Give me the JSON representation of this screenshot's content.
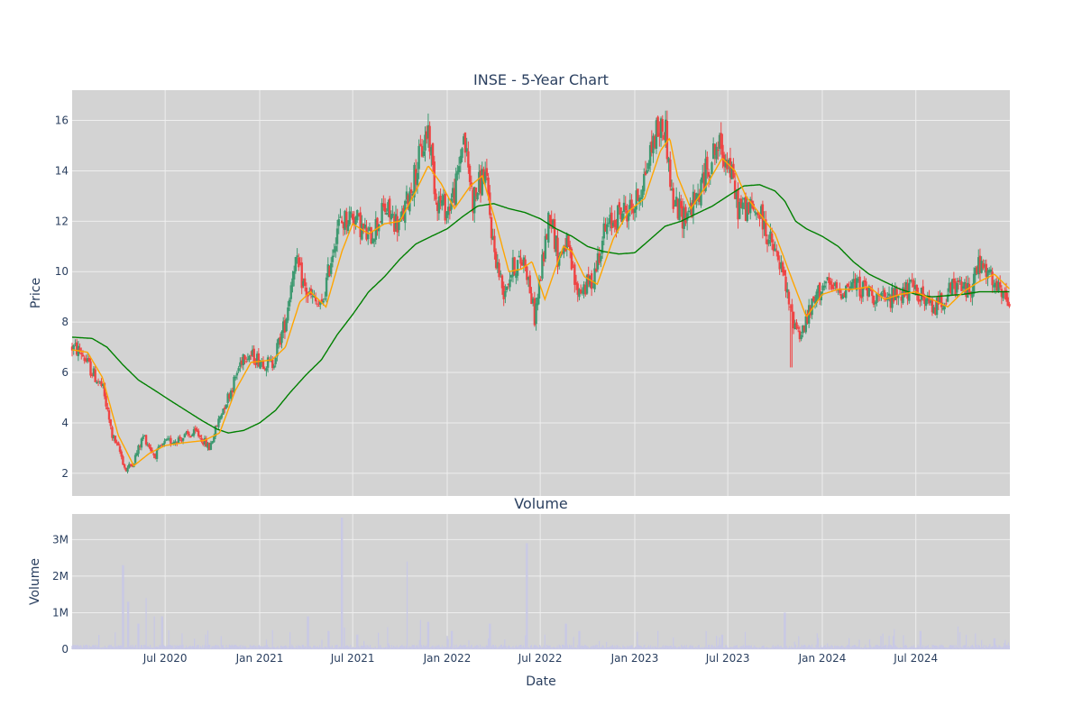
{
  "colors": {
    "background": "#ffffff",
    "plot_bg": "#d3d3d3",
    "grid": "#eeeeee",
    "up": "#3d9970",
    "down": "#ef4444",
    "ma_short": "#ffa500",
    "ma_long": "#008000",
    "volume": "#c8c8e6",
    "text": "#2a3f5f"
  },
  "chart_data": [
    {
      "type": "candlestick",
      "title": "INSE - 5-Year Chart",
      "xlabel": "",
      "ylabel": "Price",
      "xlim": [
        "2020-01-02",
        "2024-12-31"
      ],
      "ylim": [
        1.1,
        17.2
      ],
      "yticks": [
        2,
        4,
        6,
        8,
        10,
        12,
        14,
        16
      ],
      "xticks": [],
      "grid": true,
      "legend": "none",
      "price_anchors": [
        [
          "2020-01-02",
          7.0
        ],
        [
          "2020-01-20",
          6.8
        ],
        [
          "2020-02-10",
          6.0
        ],
        [
          "2020-03-01",
          5.4
        ],
        [
          "2020-03-20",
          3.5
        ],
        [
          "2020-04-05",
          2.8
        ],
        [
          "2020-04-15",
          2.1
        ],
        [
          "2020-05-01",
          2.5
        ],
        [
          "2020-05-20",
          3.5
        ],
        [
          "2020-06-10",
          2.7
        ],
        [
          "2020-07-01",
          3.2
        ],
        [
          "2020-08-01",
          3.4
        ],
        [
          "2020-09-01",
          3.6
        ],
        [
          "2020-09-25",
          3.0
        ],
        [
          "2020-10-20",
          4.5
        ],
        [
          "2020-11-10",
          5.5
        ],
        [
          "2020-12-01",
          6.8
        ],
        [
          "2021-01-01",
          6.5
        ],
        [
          "2021-01-25",
          6.3
        ],
        [
          "2021-02-20",
          8.0
        ],
        [
          "2021-03-10",
          10.5
        ],
        [
          "2021-04-01",
          9.2
        ],
        [
          "2021-05-01",
          8.5
        ],
        [
          "2021-06-01",
          11.8
        ],
        [
          "2021-07-01",
          12.3
        ],
        [
          "2021-08-01",
          11.3
        ],
        [
          "2021-09-01",
          12.5
        ],
        [
          "2021-10-01",
          11.8
        ],
        [
          "2021-11-01",
          14.0
        ],
        [
          "2021-11-25",
          15.7
        ],
        [
          "2021-12-10",
          13.0
        ],
        [
          "2022-01-01",
          12.4
        ],
        [
          "2022-01-20",
          13.5
        ],
        [
          "2022-02-01",
          15.5
        ],
        [
          "2022-02-20",
          12.8
        ],
        [
          "2022-03-15",
          14.0
        ],
        [
          "2022-04-01",
          11.0
        ],
        [
          "2022-04-20",
          9.2
        ],
        [
          "2022-05-10",
          10.2
        ],
        [
          "2022-06-01",
          10.5
        ],
        [
          "2022-06-20",
          8.2
        ],
        [
          "2022-07-10",
          11.0
        ],
        [
          "2022-07-20",
          12.5
        ],
        [
          "2022-08-05",
          10.5
        ],
        [
          "2022-08-20",
          11.2
        ],
        [
          "2022-09-10",
          9.2
        ],
        [
          "2022-10-10",
          9.6
        ],
        [
          "2022-11-01",
          11.5
        ],
        [
          "2022-12-01",
          12.3
        ],
        [
          "2023-01-01",
          12.6
        ],
        [
          "2023-01-20",
          13.8
        ],
        [
          "2023-02-10",
          15.5
        ],
        [
          "2023-03-01",
          15.8
        ],
        [
          "2023-03-15",
          12.8
        ],
        [
          "2023-04-05",
          12.2
        ],
        [
          "2023-05-01",
          12.8
        ],
        [
          "2023-05-20",
          14.0
        ],
        [
          "2023-06-10",
          15.0
        ],
        [
          "2023-07-01",
          14.5
        ],
        [
          "2023-07-20",
          12.6
        ],
        [
          "2023-08-10",
          12.5
        ],
        [
          "2023-09-01",
          12.3
        ],
        [
          "2023-09-25",
          11.0
        ],
        [
          "2023-10-15",
          10.0
        ],
        [
          "2023-11-01",
          8.3
        ],
        [
          "2023-11-20",
          7.5
        ],
        [
          "2023-12-10",
          8.5
        ],
        [
          "2024-01-01",
          9.5
        ],
        [
          "2024-02-01",
          9.2
        ],
        [
          "2024-03-01",
          9.5
        ],
        [
          "2024-04-01",
          9.2
        ],
        [
          "2024-05-01",
          8.8
        ],
        [
          "2024-06-01",
          9.2
        ],
        [
          "2024-07-01",
          9.3
        ],
        [
          "2024-08-01",
          8.5
        ],
        [
          "2024-08-20",
          8.9
        ],
        [
          "2024-09-15",
          9.4
        ],
        [
          "2024-10-15",
          9.3
        ],
        [
          "2024-11-01",
          10.3
        ],
        [
          "2024-11-20",
          9.8
        ],
        [
          "2024-12-15",
          9.0
        ],
        [
          "2024-12-31",
          8.8
        ]
      ],
      "gaps": [
        [
          "2023-11-02",
          6.2
        ]
      ],
      "ma_short": [
        [
          "2020-01-02",
          6.9
        ],
        [
          "2020-02-01",
          6.8
        ],
        [
          "2020-03-01",
          5.8
        ],
        [
          "2020-04-01",
          3.5
        ],
        [
          "2020-05-01",
          2.3
        ],
        [
          "2020-06-01",
          2.8
        ],
        [
          "2020-07-01",
          3.1
        ],
        [
          "2020-08-01",
          3.2
        ],
        [
          "2020-09-15",
          3.3
        ],
        [
          "2020-10-15",
          3.6
        ],
        [
          "2020-11-15",
          5.3
        ],
        [
          "2020-12-15",
          6.4
        ],
        [
          "2021-01-25",
          6.5
        ],
        [
          "2021-02-20",
          7.0
        ],
        [
          "2021-03-20",
          8.8
        ],
        [
          "2021-04-10",
          9.2
        ],
        [
          "2021-05-10",
          8.6
        ],
        [
          "2021-06-10",
          10.8
        ],
        [
          "2021-07-01",
          11.9
        ],
        [
          "2021-08-01",
          11.5
        ],
        [
          "2021-09-01",
          11.9
        ],
        [
          "2021-10-01",
          12.0
        ],
        [
          "2021-11-01",
          13.2
        ],
        [
          "2021-11-25",
          14.2
        ],
        [
          "2021-12-20",
          13.5
        ],
        [
          "2022-01-15",
          12.5
        ],
        [
          "2022-02-15",
          13.4
        ],
        [
          "2022-03-10",
          13.8
        ],
        [
          "2022-04-05",
          12.0
        ],
        [
          "2022-05-01",
          10.0
        ],
        [
          "2022-05-25",
          10.1
        ],
        [
          "2022-06-15",
          10.4
        ],
        [
          "2022-07-10",
          8.9
        ],
        [
          "2022-07-25",
          9.8
        ],
        [
          "2022-08-15",
          11.0
        ],
        [
          "2022-09-01",
          10.8
        ],
        [
          "2022-09-25",
          9.8
        ],
        [
          "2022-10-20",
          9.5
        ],
        [
          "2022-11-20",
          11.3
        ],
        [
          "2022-12-20",
          12.4
        ],
        [
          "2023-01-20",
          12.9
        ],
        [
          "2023-02-20",
          14.8
        ],
        [
          "2023-03-10",
          15.3
        ],
        [
          "2023-03-25",
          13.8
        ],
        [
          "2023-04-20",
          12.5
        ],
        [
          "2023-05-20",
          13.4
        ],
        [
          "2023-06-20",
          14.5
        ],
        [
          "2023-07-15",
          14.0
        ],
        [
          "2023-08-05",
          13.0
        ],
        [
          "2023-09-01",
          12.3
        ],
        [
          "2023-10-01",
          11.5
        ],
        [
          "2023-11-01",
          9.8
        ],
        [
          "2023-12-01",
          8.2
        ],
        [
          "2024-01-01",
          9.1
        ],
        [
          "2024-02-01",
          9.3
        ],
        [
          "2024-03-01",
          9.3
        ],
        [
          "2024-04-01",
          9.4
        ],
        [
          "2024-05-01",
          8.9
        ],
        [
          "2024-06-01",
          9.1
        ],
        [
          "2024-07-01",
          9.2
        ],
        [
          "2024-08-01",
          8.9
        ],
        [
          "2024-09-01",
          8.6
        ],
        [
          "2024-10-01",
          9.2
        ],
        [
          "2024-11-01",
          9.6
        ],
        [
          "2024-12-01",
          9.9
        ],
        [
          "2024-12-31",
          9.3
        ]
      ],
      "ma_long": [
        [
          "2020-01-02",
          7.4
        ],
        [
          "2020-02-10",
          7.35
        ],
        [
          "2020-03-10",
          7.0
        ],
        [
          "2020-04-10",
          6.3
        ],
        [
          "2020-05-10",
          5.7
        ],
        [
          "2020-06-10",
          5.3
        ],
        [
          "2020-07-10",
          4.9
        ],
        [
          "2020-08-10",
          4.5
        ],
        [
          "2020-09-10",
          4.1
        ],
        [
          "2020-10-10",
          3.75
        ],
        [
          "2020-11-01",
          3.6
        ],
        [
          "2020-12-01",
          3.7
        ],
        [
          "2021-01-01",
          4.0
        ],
        [
          "2021-02-01",
          4.5
        ],
        [
          "2021-03-01",
          5.2
        ],
        [
          "2021-04-01",
          5.9
        ],
        [
          "2021-05-01",
          6.5
        ],
        [
          "2021-06-01",
          7.5
        ],
        [
          "2021-07-01",
          8.3
        ],
        [
          "2021-08-01",
          9.2
        ],
        [
          "2021-09-01",
          9.8
        ],
        [
          "2021-10-01",
          10.5
        ],
        [
          "2021-11-01",
          11.1
        ],
        [
          "2021-12-01",
          11.4
        ],
        [
          "2022-01-01",
          11.7
        ],
        [
          "2022-02-01",
          12.2
        ],
        [
          "2022-03-01",
          12.6
        ],
        [
          "2022-04-01",
          12.7
        ],
        [
          "2022-05-01",
          12.5
        ],
        [
          "2022-06-01",
          12.35
        ],
        [
          "2022-07-01",
          12.1
        ],
        [
          "2022-08-01",
          11.7
        ],
        [
          "2022-09-01",
          11.4
        ],
        [
          "2022-10-01",
          11.0
        ],
        [
          "2022-11-01",
          10.8
        ],
        [
          "2022-12-01",
          10.7
        ],
        [
          "2023-01-01",
          10.75
        ],
        [
          "2023-02-01",
          11.3
        ],
        [
          "2023-03-01",
          11.8
        ],
        [
          "2023-04-01",
          12.0
        ],
        [
          "2023-05-01",
          12.3
        ],
        [
          "2023-06-01",
          12.6
        ],
        [
          "2023-07-01",
          13.0
        ],
        [
          "2023-08-01",
          13.4
        ],
        [
          "2023-09-01",
          13.45
        ],
        [
          "2023-10-01",
          13.2
        ],
        [
          "2023-10-20",
          12.8
        ],
        [
          "2023-11-10",
          12.0
        ],
        [
          "2023-12-01",
          11.7
        ],
        [
          "2024-01-01",
          11.4
        ],
        [
          "2024-02-01",
          11.0
        ],
        [
          "2024-03-01",
          10.4
        ],
        [
          "2024-04-01",
          9.9
        ],
        [
          "2024-05-01",
          9.6
        ],
        [
          "2024-06-01",
          9.3
        ],
        [
          "2024-07-01",
          9.1
        ],
        [
          "2024-08-01",
          9.0
        ],
        [
          "2024-09-01",
          9.05
        ],
        [
          "2024-10-01",
          9.1
        ],
        [
          "2024-11-01",
          9.2
        ],
        [
          "2024-12-31",
          9.2
        ]
      ]
    },
    {
      "type": "bar",
      "title": "Volume",
      "xlabel": "Date",
      "ylabel": "Volume",
      "xlim": [
        "2020-01-02",
        "2024-12-31"
      ],
      "ylim": [
        0,
        3700000
      ],
      "yticks": [
        0,
        1000000,
        2000000,
        3000000
      ],
      "ytick_labels": [
        "0",
        "1M",
        "2M",
        "3M"
      ],
      "xticks": [
        "2020-07-01",
        "2021-01-01",
        "2021-07-01",
        "2022-01-01",
        "2022-07-01",
        "2023-01-01",
        "2023-07-01",
        "2024-01-01",
        "2024-07-01"
      ],
      "xtick_labels": [
        "Jul 2020",
        "Jan 2021",
        "Jul 2021",
        "Jan 2022",
        "Jul 2022",
        "Jan 2023",
        "Jul 2023",
        "Jan 2024",
        "Jul 2024"
      ],
      "grid": true,
      "baseline": 80000,
      "spikes": [
        [
          "2020-04-10",
          2300000
        ],
        [
          "2020-04-20",
          1300000
        ],
        [
          "2020-05-10",
          700000
        ],
        [
          "2020-05-25",
          1400000
        ],
        [
          "2020-06-10",
          900000
        ],
        [
          "2020-06-25",
          900000
        ],
        [
          "2021-04-05",
          900000
        ],
        [
          "2021-05-15",
          500000
        ],
        [
          "2021-06-10",
          3600000
        ],
        [
          "2021-06-15",
          600000
        ],
        [
          "2021-07-10",
          400000
        ],
        [
          "2021-08-20",
          450000
        ],
        [
          "2021-10-15",
          2400000
        ],
        [
          "2021-11-10",
          800000
        ],
        [
          "2021-11-25",
          750000
        ],
        [
          "2022-01-10",
          500000
        ],
        [
          "2022-03-25",
          700000
        ],
        [
          "2022-06-05",
          2900000
        ],
        [
          "2022-07-10",
          400000
        ],
        [
          "2022-08-20",
          700000
        ],
        [
          "2022-09-15",
          500000
        ],
        [
          "2023-02-15",
          500000
        ],
        [
          "2023-06-20",
          400000
        ],
        [
          "2023-10-20",
          1000000
        ],
        [
          "2024-05-20",
          550000
        ],
        [
          "2024-07-10",
          500000
        ],
        [
          "2024-12-01",
          300000
        ]
      ]
    }
  ]
}
